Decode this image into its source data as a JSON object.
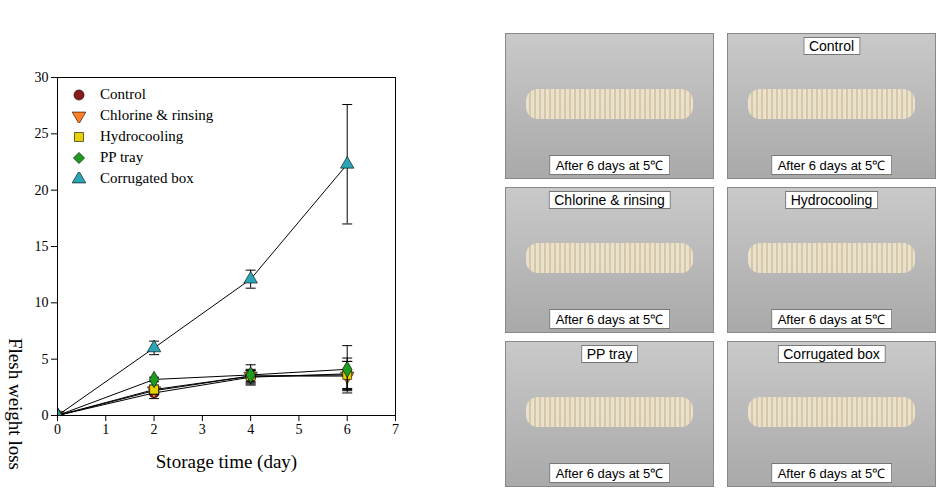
{
  "chart_data": {
    "type": "line",
    "x_label": "Storage time (day)",
    "y_label": "Flesh weight loss",
    "x": [
      0,
      2,
      4,
      6
    ],
    "series": [
      {
        "name": "Control",
        "color": "#8b1a1a",
        "marker": "circle",
        "values": [
          0,
          2.0,
          3.4,
          3.7
        ],
        "errors": [
          null,
          0.5,
          0.6,
          1.4
        ]
      },
      {
        "name": "Chlorine & rinsing",
        "color": "#ff7f27",
        "marker": "triangle-down",
        "values": [
          0,
          2.2,
          3.5,
          3.5
        ],
        "errors": [
          null,
          0.3,
          0.5,
          1.3
        ]
      },
      {
        "name": "Hydrocooling",
        "color": "#e6d200",
        "marker": "square",
        "values": [
          0,
          2.3,
          3.5,
          3.6
        ],
        "errors": [
          null,
          0.4,
          0.6,
          1.2
        ]
      },
      {
        "name": "PP tray",
        "color": "#1e9a1e",
        "marker": "diamond",
        "values": [
          0,
          3.2,
          3.6,
          4.1
        ],
        "errors": [
          null,
          0.2,
          0.9,
          2.1
        ]
      },
      {
        "name": "Corrugated box",
        "color": "#2aa5b5",
        "marker": "triangle",
        "values": [
          0,
          6.0,
          12.1,
          22.3
        ],
        "errors": [
          null,
          0.6,
          0.8,
          5.3
        ]
      }
    ],
    "xlim": [
      0,
      7
    ],
    "xticks": [
      0,
      1,
      2,
      3,
      4,
      5,
      6,
      7
    ],
    "ylim": [
      0,
      30
    ],
    "yticks": [
      0,
      5,
      10,
      15,
      20,
      25,
      30
    ],
    "legend": "top-left",
    "grid": false
  },
  "photo_panels": [
    {
      "caption": "After 6 days at 5℃"
    },
    {
      "label": "Control",
      "caption": "After 6 days at 5℃"
    },
    {
      "label": "Chlorine & rinsing",
      "caption": "After 6 days at 5℃"
    },
    {
      "label": "Hydrocooling",
      "caption": "After 6 days at 5℃"
    },
    {
      "label": "PP tray",
      "caption": "After 6 days at 5℃"
    },
    {
      "label": "Corrugated box",
      "caption": "After 6 days at 5℃"
    }
  ]
}
